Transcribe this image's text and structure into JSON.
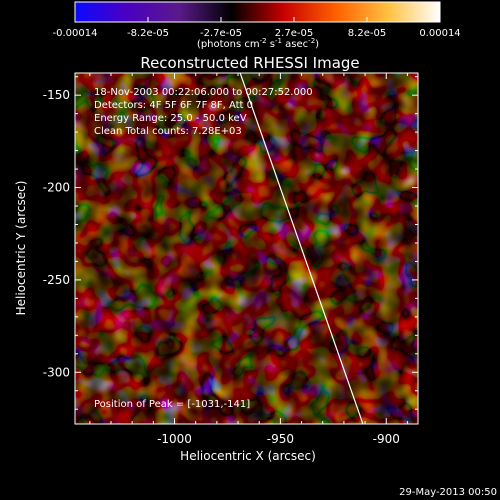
{
  "colorbar": {
    "tick_labels": [
      "-0.00014",
      "-8.2e-05",
      "-2.7e-05",
      "2.7e-05",
      "8.2e-05",
      "0.00014"
    ],
    "unit_base": "(photons cm",
    "unit_exp1": "-2",
    "unit_mid": " s",
    "unit_exp2": "-1",
    "unit_tail": " asec",
    "unit_exp3": "-2",
    "unit_close": ")",
    "colors": [
      "#0a0aff",
      "#4b00c0",
      "#5a1a8a",
      "#000000",
      "#c80000",
      "#ff6000",
      "#ffc040",
      "#ffffff"
    ]
  },
  "title": "Reconstructed RHESSI Image",
  "annotations": {
    "time": "18-Nov-2003 00:22:06.000 to 00:27:52.000",
    "detectors": "Detectors: 4F 5F 6F 7F 8F, Att 0",
    "energy": "Energy Range: 25.0 - 50.0 keV",
    "clean": "Clean     Total counts: 7.28E+03",
    "peak": "Position of Peak = [-1031,-141]"
  },
  "footer_date": "29-May-2013 00:50",
  "chart_data": {
    "type": "heatmap",
    "title": "Reconstructed RHESSI Image",
    "xlabel": "Heliocentric X (arcsec)",
    "ylabel": "Heliocentric Y (arcsec)",
    "xlim": [
      -1047,
      -885
    ],
    "ylim": [
      -328,
      -138
    ],
    "x_ticks": [
      -1000,
      -950,
      -900
    ],
    "x_tick_labels": [
      "-1000",
      "-950",
      "-900"
    ],
    "y_ticks": [
      -150,
      -200,
      -250,
      -300
    ],
    "y_tick_labels": [
      "-150",
      "-200",
      "-250",
      "-300"
    ],
    "color_range": [
      -0.00014,
      0.00014
    ],
    "limb_line": [
      [
        -969,
        -138
      ],
      [
        -911,
        -328
      ]
    ],
    "peak_position": [
      -1031,
      -141
    ]
  }
}
